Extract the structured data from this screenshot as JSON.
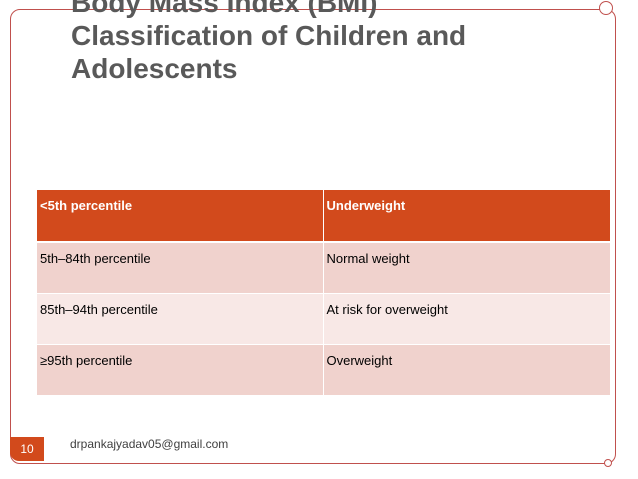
{
  "slide": {
    "title_lines": [
      "Body Mass Index (BMI)",
      "Classification of Children and",
      "Adolescents"
    ],
    "table": {
      "rows": [
        [
          "<5th percentile",
          "Underweight"
        ],
        [
          "5th–84th percentile",
          "Normal weight"
        ],
        [
          "85th–94th percentile",
          "At risk for overweight"
        ],
        [
          "≥95th percentile",
          "Overweight"
        ]
      ]
    },
    "page_number": "10",
    "footer": "drpankajyadav05@gmail.com"
  },
  "colors": {
    "accent": "#d24a1c",
    "frame": "#c0504d",
    "row_dark": "#f0d2cd",
    "row_light": "#f8e8e6",
    "title": "#595959"
  }
}
